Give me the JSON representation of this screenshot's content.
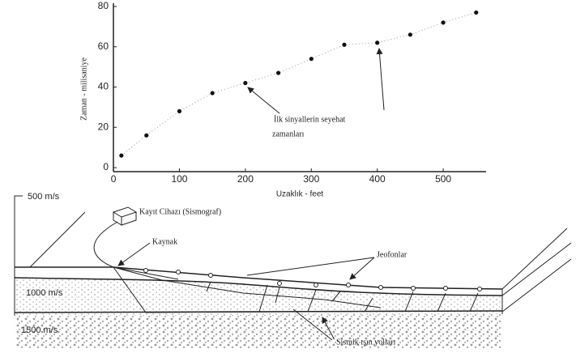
{
  "chart_data": {
    "type": "scatter",
    "x_label": "Uzaklık - feet",
    "y_label": "Zaman - milisaniye",
    "annotation": [
      "İlk sinyallerin seyehat",
      "zamanları"
    ],
    "x": [
      12,
      50,
      100,
      150,
      200,
      250,
      300,
      350,
      400,
      450,
      500,
      550
    ],
    "values": [
      6,
      16,
      28,
      37,
      42,
      47,
      54,
      61,
      62,
      66,
      72,
      77
    ],
    "color": "#111111",
    "xlim": [
      -5,
      565
    ],
    "xticks": [
      0,
      100,
      200,
      300,
      400,
      500
    ],
    "ylim": [
      -2,
      80
    ],
    "yticks": [
      0,
      20,
      40,
      60,
      80
    ]
  },
  "diagram": {
    "labels": {
      "layer1": "500 m/s",
      "layer2": "1000 m/s",
      "layer3": "1500 m/s",
      "recorder": "Kayıt Cihazı (Sismograf)",
      "source": "Kaynak",
      "geophones": "Jeofonlar",
      "rays": "Sismik ışın yolları"
    }
  }
}
